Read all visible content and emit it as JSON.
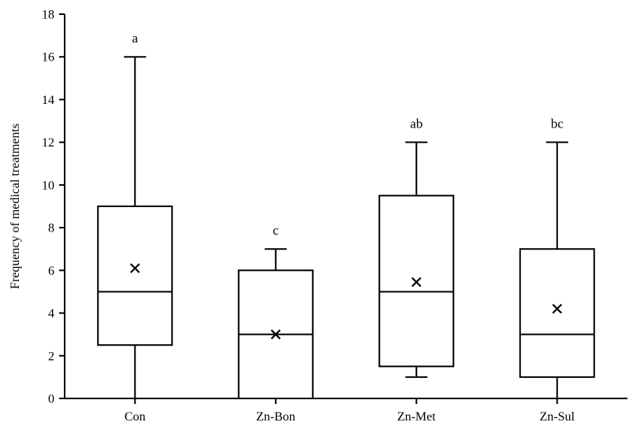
{
  "chart_data": {
    "type": "box",
    "title": "",
    "xlabel": "",
    "ylabel": "Frequency of medical treatments",
    "ylim": [
      0,
      18
    ],
    "yticks": [
      0,
      2,
      4,
      6,
      8,
      10,
      12,
      14,
      16,
      18
    ],
    "grid": false,
    "categories": [
      "Con",
      "Zn-Bon",
      "Zn-Met",
      "Zn-Sul"
    ],
    "boxes": [
      {
        "category": "Con",
        "min": 0,
        "q1": 2.5,
        "median": 5,
        "q3": 9,
        "max": 16,
        "mean": 6.1,
        "annotation": "a"
      },
      {
        "category": "Zn-Bon",
        "min": 0,
        "q1": 0,
        "median": 3,
        "q3": 6,
        "max": 7,
        "mean": 3.0,
        "annotation": "c"
      },
      {
        "category": "Zn-Met",
        "min": 1,
        "q1": 1.5,
        "median": 5,
        "q3": 9.5,
        "max": 12,
        "mean": 5.45,
        "annotation": "ab"
      },
      {
        "category": "Zn-Sul",
        "min": 0,
        "q1": 1,
        "median": 3,
        "q3": 7,
        "max": 12,
        "mean": 4.2,
        "annotation": "bc"
      }
    ]
  }
}
